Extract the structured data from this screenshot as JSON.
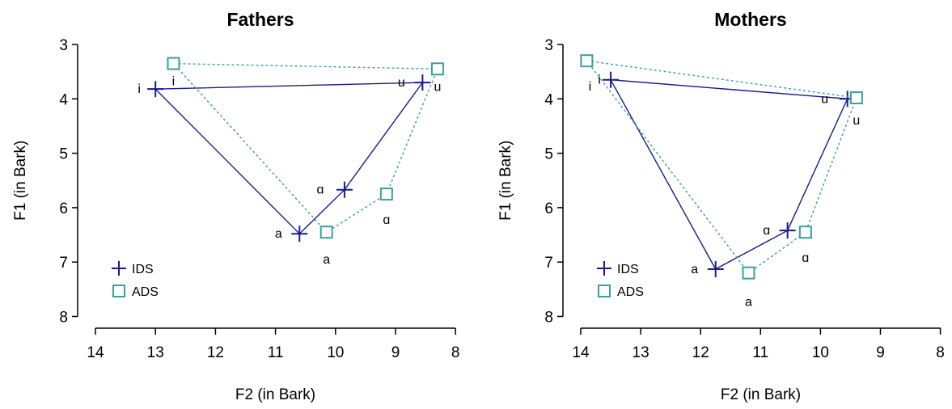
{
  "colors": {
    "ids": "#1a1a8c",
    "ads": "#3aa0a0",
    "axis": "#000000"
  },
  "chart_data": [
    {
      "type": "scatter",
      "title": "Fathers",
      "xlabel": "F2 (in Bark)",
      "ylabel": "F1 (in Bark)",
      "xlim": [
        14,
        8
      ],
      "ylim": [
        3,
        8
      ],
      "xticks": [
        "14",
        "13",
        "12",
        "11",
        "10",
        "9",
        "8"
      ],
      "yticks": [
        "3",
        "4",
        "5",
        "6",
        "7",
        "8"
      ],
      "legend": {
        "position": "bottom-left",
        "entries": [
          "IDS",
          "ADS"
        ]
      },
      "series": [
        {
          "name": "IDS",
          "marker": "plus",
          "line": "solid",
          "points": [
            {
              "label": "i",
              "x": 13.0,
              "y": 3.82
            },
            {
              "label": "u",
              "x": 8.55,
              "y": 3.7
            },
            {
              "label": "ɑ",
              "x": 9.85,
              "y": 5.67
            },
            {
              "label": "a",
              "x": 10.6,
              "y": 6.48
            }
          ]
        },
        {
          "name": "ADS",
          "marker": "square",
          "line": "dotted",
          "points": [
            {
              "label": "i",
              "x": 12.7,
              "y": 3.35
            },
            {
              "label": "u",
              "x": 8.3,
              "y": 3.45
            },
            {
              "label": "ɑ",
              "x": 9.15,
              "y": 5.75
            },
            {
              "label": "a",
              "x": 10.15,
              "y": 6.45
            }
          ]
        }
      ]
    },
    {
      "type": "scatter",
      "title": "Mothers",
      "xlabel": "F2 (in Bark)",
      "ylabel": "F1 (in Bark)",
      "xlim": [
        14,
        8
      ],
      "ylim": [
        3,
        8
      ],
      "xticks": [
        "14",
        "13",
        "12",
        "11",
        "10",
        "9",
        "8"
      ],
      "yticks": [
        "3",
        "4",
        "5",
        "6",
        "7",
        "8"
      ],
      "legend": {
        "position": "bottom-left",
        "entries": [
          "IDS",
          "ADS"
        ]
      },
      "series": [
        {
          "name": "IDS",
          "marker": "plus",
          "line": "solid",
          "points": [
            {
              "label": "i",
              "x": 13.5,
              "y": 3.65
            },
            {
              "label": "u",
              "x": 9.55,
              "y": 4.0
            },
            {
              "label": "ɑ",
              "x": 10.55,
              "y": 6.42
            },
            {
              "label": "a",
              "x": 11.75,
              "y": 7.13
            }
          ]
        },
        {
          "name": "ADS",
          "marker": "square",
          "line": "dotted",
          "points": [
            {
              "label": "i",
              "x": 13.9,
              "y": 3.3
            },
            {
              "label": "u",
              "x": 9.4,
              "y": 3.98
            },
            {
              "label": "ɑ",
              "x": 10.25,
              "y": 6.45
            },
            {
              "label": "a",
              "x": 11.2,
              "y": 7.2
            }
          ]
        }
      ]
    }
  ]
}
